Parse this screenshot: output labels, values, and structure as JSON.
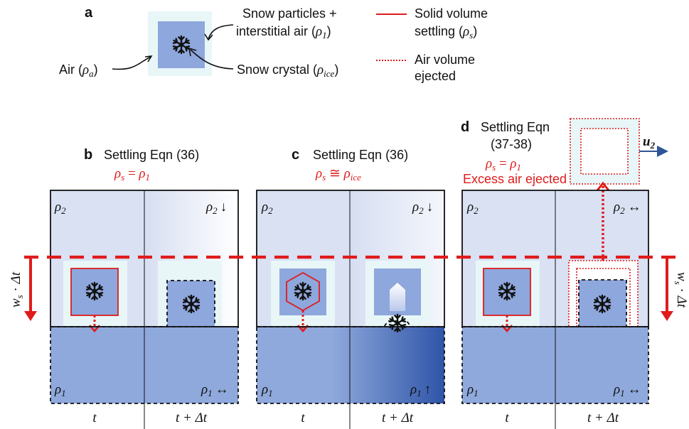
{
  "legend": {
    "panel_label": "a",
    "air_label_text": "Air (",
    "air_symbol": "ρ",
    "air_sub": "a",
    "snow_particles_line1": "Snow particles +",
    "snow_particles_line2": "interstitial air (",
    "snow_particles_symbol": "ρ",
    "snow_particles_sub": "1",
    "crystal_text": "Snow crystal (",
    "crystal_symbol": "ρ",
    "crystal_sub": "ice",
    "solid_line1": "Solid volume",
    "solid_line2": "settling (",
    "solid_symbol": "ρ",
    "solid_sub": "s",
    "air_ejected_line1": "Air volume",
    "air_ejected_line2": "ejected"
  },
  "panels": {
    "b": {
      "label": "b",
      "title": "Settling Eqn (36)",
      "condition_lhs": "ρ",
      "condition_lhs_sub": "s",
      "condition_op": " = ",
      "condition_rhs": "ρ",
      "condition_rhs_sub": "1",
      "top_left": "ρ",
      "top_left_sub": "2",
      "top_right": "ρ",
      "top_right_sub": "2",
      "top_right_arrow": "↓",
      "bottom_left": "ρ",
      "bottom_left_sub": "1",
      "bottom_right": "ρ",
      "bottom_right_sub": "1",
      "bottom_right_arrow": "↔",
      "time_left": "t",
      "time_right": "t + Δt"
    },
    "c": {
      "label": "c",
      "title": "Settling Eqn (36)",
      "condition_lhs": "ρ",
      "condition_lhs_sub": "s",
      "condition_op": " ≅ ",
      "condition_rhs": "ρ",
      "condition_rhs_sub": "ice",
      "top_left": "ρ",
      "top_left_sub": "2",
      "top_right": "ρ",
      "top_right_sub": "2",
      "top_right_arrow": "↓",
      "bottom_left": "ρ",
      "bottom_left_sub": "1",
      "bottom_right": "ρ",
      "bottom_right_sub": "1",
      "bottom_right_arrow": "↑",
      "time_left": "t",
      "time_right": "t + Δt"
    },
    "d": {
      "label": "d",
      "title_line1": "Settling Eqn",
      "title_line2": "(37-38)",
      "condition_lhs": "ρ",
      "condition_lhs_sub": "s",
      "condition_op": " = ",
      "condition_rhs": "ρ",
      "condition_rhs_sub": "1",
      "excess_note": "Excess air ejected",
      "u_symbol": "u",
      "u_sub": "2",
      "top_left": "ρ",
      "top_left_sub": "2",
      "top_right": "ρ",
      "top_right_sub": "2",
      "top_right_arrow": "↔",
      "bottom_left": "ρ",
      "bottom_left_sub": "1",
      "bottom_right": "ρ",
      "bottom_right_sub": "1",
      "bottom_right_arrow": "↔",
      "time_left": "t",
      "time_right": "t + Δt"
    }
  },
  "settling_label": {
    "w": "w",
    "w_sub": "s",
    "dot": " · ",
    "dt": "Δt"
  },
  "colors": {
    "red": "#e01b1b",
    "dark_blue": "#2f5597",
    "medium_blue": "#8fa9dc",
    "snow_square": "#8ea7dc",
    "halo": "#e8f6f8",
    "upper_fill": "#dbe3f4",
    "black": "#111111"
  }
}
